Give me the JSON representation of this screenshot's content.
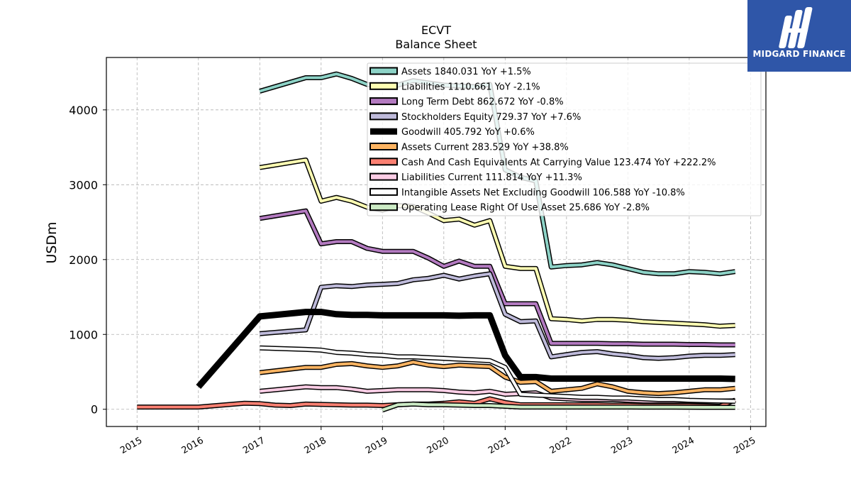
{
  "logo": {
    "text": "MIDGARD FINANCE",
    "icon": "midgard-mark-icon",
    "bg": "#2f56a8"
  },
  "chart_data": {
    "type": "line",
    "title": "ECVT",
    "subtitle": "Balance  Sheet",
    "ylabel": "USDm",
    "xlim": [
      2014.5,
      2025.25
    ],
    "ylim": [
      -230,
      4700
    ],
    "x_ticks": [
      2015,
      2016,
      2017,
      2018,
      2019,
      2020,
      2021,
      2022,
      2023,
      2024,
      2025
    ],
    "y_ticks": [
      0,
      1000,
      2000,
      3000,
      4000
    ],
    "grid": true,
    "legend_position": "top-right",
    "series": [
      {
        "name": "Assets  1840.031 YoY +1.5%",
        "color": "#8dd3c7",
        "width": 4,
        "x": [
          2017.0,
          2017.75,
          2018.0,
          2018.25,
          2018.5,
          2018.75,
          2019.0,
          2019.25,
          2019.5,
          2019.75,
          2020.0,
          2020.25,
          2020.5,
          2020.75,
          2021.0,
          2021.25,
          2021.5,
          2021.75,
          2022.0,
          2022.25,
          2022.5,
          2022.75,
          2023.0,
          2023.25,
          2023.5,
          2023.75,
          2024.0,
          2024.25,
          2024.5,
          2024.75
        ],
        "y": [
          4250,
          4430,
          4430,
          4480,
          4420,
          4340,
          4300,
          4330,
          4390,
          4360,
          4330,
          4320,
          4310,
          4340,
          3200,
          3100,
          3050,
          1900,
          1920,
          1930,
          1960,
          1930,
          1880,
          1830,
          1810,
          1810,
          1840,
          1830,
          1810,
          1840
        ]
      },
      {
        "name": "Liabilities  1110.661 YoY -2.1%",
        "color": "#ffffb3",
        "width": 4,
        "x": [
          2017.0,
          2017.75,
          2018.0,
          2018.25,
          2018.5,
          2018.75,
          2019.0,
          2019.25,
          2019.5,
          2019.75,
          2020.0,
          2020.25,
          2020.5,
          2020.75,
          2021.0,
          2021.25,
          2021.5,
          2021.75,
          2022.0,
          2022.25,
          2022.5,
          2022.75,
          2023.0,
          2023.25,
          2023.5,
          2023.75,
          2024.0,
          2024.25,
          2024.5,
          2024.75
        ],
        "y": [
          3230,
          3330,
          2780,
          2830,
          2780,
          2700,
          2660,
          2720,
          2710,
          2620,
          2520,
          2540,
          2460,
          2520,
          1910,
          1880,
          1880,
          1210,
          1200,
          1180,
          1200,
          1200,
          1190,
          1170,
          1160,
          1150,
          1140,
          1130,
          1110,
          1120
        ]
      },
      {
        "name": "Long Term Debt  862.672 YoY -0.8%",
        "color": "#bebada",
        "width": 4,
        "draw_color": "#b37ac0",
        "x": [
          2017.0,
          2017.75,
          2018.0,
          2018.25,
          2018.5,
          2018.75,
          2019.0,
          2019.25,
          2019.5,
          2019.75,
          2020.0,
          2020.25,
          2020.5,
          2020.75,
          2021.0,
          2021.25,
          2021.5,
          2021.75,
          2022.0,
          2022.25,
          2022.5,
          2022.75,
          2023.0,
          2023.25,
          2023.5,
          2023.75,
          2024.0,
          2024.25,
          2024.5,
          2024.75
        ],
        "y": [
          2550,
          2650,
          2210,
          2240,
          2240,
          2150,
          2110,
          2110,
          2110,
          2020,
          1910,
          1980,
          1910,
          1910,
          1410,
          1410,
          1410,
          880,
          880,
          880,
          880,
          875,
          875,
          870,
          870,
          870,
          865,
          865,
          860,
          860
        ]
      },
      {
        "name": "Stockholders Equity  729.37 YoY +7.6%",
        "color": "#bebada",
        "width": 4,
        "x": [
          2017.0,
          2017.75,
          2018.0,
          2018.25,
          2018.5,
          2018.75,
          2019.0,
          2019.25,
          2019.5,
          2019.75,
          2020.0,
          2020.25,
          2020.5,
          2020.75,
          2021.0,
          2021.25,
          2021.5,
          2021.75,
          2022.0,
          2022.25,
          2022.5,
          2022.75,
          2023.0,
          2023.25,
          2023.5,
          2023.75,
          2024.0,
          2024.25,
          2024.5,
          2024.75
        ],
        "y": [
          1010,
          1060,
          1630,
          1650,
          1640,
          1660,
          1670,
          1680,
          1730,
          1750,
          1790,
          1740,
          1780,
          1810,
          1270,
          1170,
          1180,
          700,
          730,
          760,
          770,
          740,
          720,
          690,
          680,
          690,
          710,
          720,
          720,
          730
        ]
      },
      {
        "name": "Goodwill  405.792 YoY +0.6%",
        "color": "#000000",
        "width": 9,
        "x": [
          2016.0,
          2017.0,
          2017.75,
          2018.0,
          2018.25,
          2018.5,
          2018.75,
          2019.0,
          2019.25,
          2019.5,
          2019.75,
          2020.0,
          2020.25,
          2020.5,
          2020.75,
          2021.0,
          2021.25,
          2021.5,
          2021.75,
          2022.0,
          2022.25,
          2022.5,
          2022.75,
          2023.0,
          2023.25,
          2023.5,
          2023.75,
          2024.0,
          2024.25,
          2024.5,
          2024.75
        ],
        "y": [
          300,
          1240,
          1300,
          1300,
          1270,
          1260,
          1260,
          1255,
          1255,
          1255,
          1255,
          1255,
          1250,
          1255,
          1255,
          720,
          430,
          430,
          410,
          410,
          410,
          410,
          410,
          410,
          410,
          410,
          410,
          410,
          410,
          410,
          405
        ]
      },
      {
        "name": "Assets Current  283.529 YoY +38.8%",
        "color": "#fdb462",
        "width": 4,
        "x": [
          2017.0,
          2017.75,
          2018.0,
          2018.25,
          2018.5,
          2018.75,
          2019.0,
          2019.25,
          2019.5,
          2019.75,
          2020.0,
          2020.25,
          2020.5,
          2020.75,
          2021.0,
          2021.25,
          2021.5,
          2021.75,
          2022.0,
          2022.25,
          2022.5,
          2022.75,
          2023.0,
          2023.25,
          2023.5,
          2023.75,
          2024.0,
          2024.25,
          2024.5,
          2024.75
        ],
        "y": [
          490,
          560,
          560,
          600,
          610,
          580,
          560,
          580,
          630,
          590,
          570,
          590,
          580,
          570,
          430,
          360,
          370,
          240,
          260,
          280,
          340,
          300,
          240,
          220,
          210,
          220,
          240,
          260,
          260,
          280
        ]
      },
      {
        "name": "Cash And Cash Equivalents At Carrying Value  123.474 YoY +222.2%",
        "color": "#fb8072",
        "width": 4,
        "x": [
          2015.0,
          2016.0,
          2016.75,
          2017.0,
          2017.25,
          2017.5,
          2017.75,
          2018.0,
          2018.25,
          2018.5,
          2018.75,
          2019.0,
          2019.25,
          2019.5,
          2019.75,
          2020.0,
          2020.25,
          2020.5,
          2020.75,
          2021.0,
          2021.25,
          2021.5,
          2021.75,
          2022.0,
          2022.25,
          2022.5,
          2022.75,
          2023.0,
          2023.25,
          2023.5,
          2023.75,
          2024.0,
          2024.25,
          2024.5,
          2024.75
        ],
        "y": [
          30,
          30,
          80,
          75,
          55,
          50,
          70,
          65,
          60,
          55,
          55,
          50,
          60,
          70,
          70,
          80,
          100,
          80,
          140,
          90,
          60,
          60,
          60,
          60,
          60,
          60,
          55,
          55,
          50,
          50,
          50,
          50,
          45,
          40,
          123
        ]
      },
      {
        "name": "Liabilities Current  111.814 YoY +11.3%",
        "color": "#fccde5",
        "width": 4,
        "x": [
          2017.0,
          2017.75,
          2018.0,
          2018.25,
          2018.5,
          2018.75,
          2019.0,
          2019.25,
          2019.5,
          2019.75,
          2020.0,
          2020.25,
          2020.5,
          2020.75,
          2021.0,
          2021.25,
          2021.5,
          2021.75,
          2022.0,
          2022.25,
          2022.5,
          2022.75,
          2023.0,
          2023.25,
          2023.5,
          2023.75,
          2024.0,
          2024.25,
          2024.5,
          2024.75
        ],
        "y": [
          240,
          300,
          290,
          290,
          270,
          240,
          250,
          260,
          260,
          260,
          250,
          230,
          220,
          240,
          200,
          210,
          220,
          150,
          140,
          130,
          130,
          130,
          120,
          110,
          110,
          110,
          110,
          110,
          110,
          112
        ]
      },
      {
        "name": "Intangible Assets Net Excluding Goodwill  106.588 YoY -10.8%",
        "color": "#ffffff",
        "width": 4,
        "x": [
          2017.0,
          2017.75,
          2018.0,
          2018.25,
          2018.5,
          2018.75,
          2019.0,
          2019.25,
          2019.5,
          2019.75,
          2020.0,
          2020.25,
          2020.5,
          2020.75,
          2021.0,
          2021.25,
          2021.5,
          2021.75,
          2022.0,
          2022.25,
          2022.5,
          2022.75,
          2023.0,
          2023.25,
          2023.5,
          2023.75,
          2024.0,
          2024.25,
          2024.5,
          2024.75
        ],
        "y": [
          820,
          800,
          790,
          760,
          750,
          730,
          720,
          700,
          700,
          690,
          680,
          670,
          660,
          650,
          560,
          200,
          190,
          180,
          170,
          160,
          160,
          150,
          150,
          140,
          130,
          130,
          120,
          115,
          110,
          107
        ]
      },
      {
        "name": "Operating Lease Right Of Use Asset  25.686 YoY -2.8%",
        "color": "#ccebc5",
        "width": 4,
        "x": [
          2019.0,
          2019.25,
          2019.5,
          2019.75,
          2020.0,
          2020.25,
          2020.5,
          2020.75,
          2021.0,
          2021.25,
          2021.5,
          2021.75,
          2022.0,
          2022.25,
          2022.5,
          2022.75,
          2023.0,
          2023.25,
          2023.5,
          2023.75,
          2024.0,
          2024.25,
          2024.5,
          2024.75
        ],
        "y": [
          -10,
          60,
          70,
          60,
          60,
          55,
          50,
          50,
          40,
          30,
          30,
          30,
          30,
          30,
          30,
          30,
          30,
          28,
          28,
          28,
          27,
          26,
          26,
          26
        ]
      }
    ]
  }
}
